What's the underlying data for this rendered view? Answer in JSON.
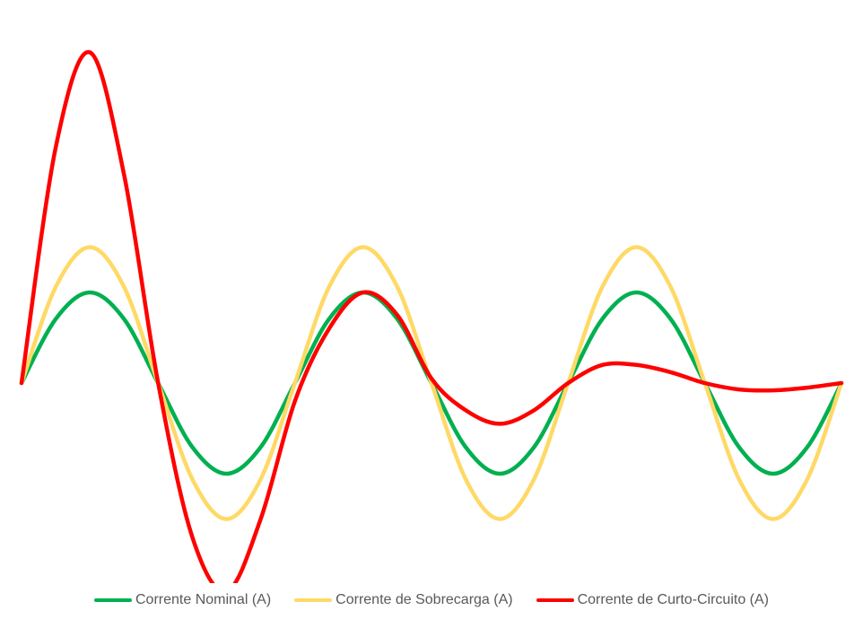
{
  "chart_data": {
    "type": "line",
    "title": "",
    "xlabel": "",
    "ylabel": "",
    "axes_visible": false,
    "grid": false,
    "legend_position": "bottom",
    "x": [
      0,
      0.25,
      0.5,
      0.75,
      1,
      1.25,
      1.5,
      1.75,
      2,
      2.25,
      2.5,
      2.75,
      3,
      3.25,
      3.5,
      3.75,
      4,
      4.25,
      4.5,
      4.75,
      5,
      5.25,
      5.5,
      5.75,
      6
    ],
    "ylim": [
      -1.75,
      3.8
    ],
    "series": [
      {
        "name": "Corrente Nominal (A)",
        "color": "#00b050",
        "values": [
          0,
          0.707,
          1,
          0.707,
          0,
          -0.707,
          -1,
          -0.707,
          0,
          0.707,
          1,
          0.707,
          0,
          -0.707,
          -1,
          -0.707,
          0,
          0.707,
          1,
          0.707,
          0,
          -0.707,
          -1,
          -0.707,
          0
        ]
      },
      {
        "name": "Corrente de Sobrecarga (A)",
        "color": "#ffd966",
        "values": [
          0,
          1.06,
          1.5,
          1.06,
          0,
          -1.06,
          -1.5,
          -1.06,
          0,
          1.06,
          1.5,
          1.06,
          0,
          -1.06,
          -1.5,
          -1.06,
          0,
          1.06,
          1.5,
          1.06,
          0,
          -1.06,
          -1.5,
          -1.06,
          0
        ]
      },
      {
        "name": "Corrente de Curto-Circuito (A)",
        "color": "#ff0000",
        "values": [
          0,
          2.6,
          3.65,
          2.3,
          0,
          -1.7,
          -2.3,
          -1.5,
          -0.2,
          0.6,
          1.0,
          0.75,
          0.05,
          -0.3,
          -0.45,
          -0.3,
          0,
          0.2,
          0.2,
          0.12,
          0,
          -0.07,
          -0.08,
          -0.05,
          0
        ]
      }
    ]
  }
}
